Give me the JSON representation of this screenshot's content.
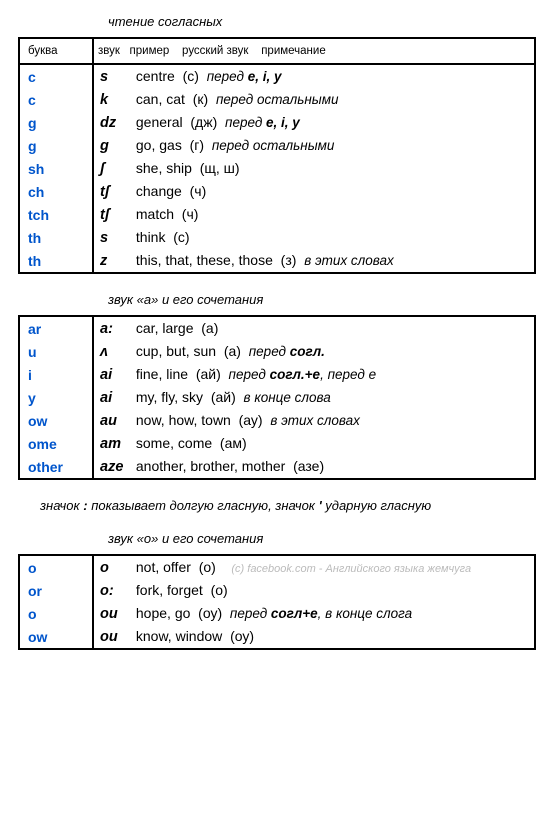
{
  "section1_title": "чтение согласных",
  "headers": {
    "letter": "буква",
    "sound": "звук",
    "example": "пример",
    "russian": "русский звук",
    "note": "примечание"
  },
  "t1": [
    {
      "l": "c",
      "s": "s",
      "ex": "centre",
      "ru": "(с)",
      "note_pre": "перед ",
      "note_b": "e, i, y",
      "note_post": ""
    },
    {
      "l": "c",
      "s": "k",
      "ex": "can, cat",
      "ru": "(к)",
      "note_pre": "перед остальными",
      "note_b": "",
      "note_post": ""
    },
    {
      "l": "g",
      "s": "dz",
      "ex": "general",
      "ru": "(дж)",
      "note_pre": "перед ",
      "note_b": "e, i, y",
      "note_post": ""
    },
    {
      "l": "g",
      "s": "g",
      "ex": "go, gas",
      "ru": "(г)",
      "note_pre": "перед остальными",
      "note_b": "",
      "note_post": ""
    },
    {
      "l": "sh",
      "s": "ʃ",
      "ex": "she, ship",
      "ru": "(щ, ш)",
      "note_pre": "",
      "note_b": "",
      "note_post": ""
    },
    {
      "l": "ch",
      "s": "tʃ",
      "ex": "change",
      "ru": "(ч)",
      "note_pre": "",
      "note_b": "",
      "note_post": ""
    },
    {
      "l": "tch",
      "s": "tʃ",
      "ex": "match",
      "ru": "(ч)",
      "note_pre": "",
      "note_b": "",
      "note_post": ""
    },
    {
      "l": "th",
      "s": "s",
      "ex": "think",
      "ru": "(с)",
      "note_pre": "",
      "note_b": "",
      "note_post": ""
    },
    {
      "l": "th",
      "s": "z",
      "ex": "this, that, these, those",
      "ru": "(з)",
      "note_pre": "в этих словах",
      "note_b": "",
      "note_post": ""
    }
  ],
  "section2_title": "звук «а» и его сочетания",
  "t2": [
    {
      "l": "ar",
      "s": "a:",
      "ex": "car, large",
      "ru": "(а)",
      "note_pre": "",
      "note_b": "",
      "note_post": ""
    },
    {
      "l": "u",
      "s": "ʌ",
      "ex": "cup, but, sun",
      "ru": "(а)",
      "note_pre": "перед ",
      "note_b": "согл.",
      "note_post": ""
    },
    {
      "l": "i",
      "s": "ai",
      "ex": "fine, line",
      "ru": "(ай)",
      "note_pre": "перед ",
      "note_b": "согл.+е",
      "note_post": ", перед е"
    },
    {
      "l": "y",
      "s": "ai",
      "ex": "my, fly, sky",
      "ru": "(ай)",
      "note_pre": "в конце слова",
      "note_b": "",
      "note_post": ""
    },
    {
      "l": "ow",
      "s": "au",
      "ex": "now, how, town",
      "ru": "(ау)",
      "note_pre": "в этих словах",
      "note_b": "",
      "note_post": ""
    },
    {
      "l": "ome",
      "s": "am",
      "ex": "some, come",
      "ru": "(ам)",
      "note_pre": "",
      "note_b": "",
      "note_post": ""
    },
    {
      "l": "other",
      "s": "aze",
      "ex": "another, brother, mother",
      "ru": "(азе)",
      "note_pre": "",
      "note_b": "",
      "note_post": ""
    }
  ],
  "middle_note_1": "значок ",
  "middle_note_b1": ":",
  "middle_note_2": " показывает долгую гласную,  значок ",
  "middle_note_b2": "'",
  "middle_note_3": " ударную гласную",
  "section3_title": "звук «о» и его сочетания",
  "watermark": "(c) facebook.com - Английского языка жемчуга",
  "t3": [
    {
      "l": "o",
      "s": "o",
      "ex": "not, offer",
      "ru": "(о)",
      "note_pre": "",
      "note_b": "",
      "note_post": ""
    },
    {
      "l": "or",
      "s": "o:",
      "ex": "fork, forget",
      "ru": "(о)",
      "note_pre": "",
      "note_b": "",
      "note_post": ""
    },
    {
      "l": "o",
      "s": "ou",
      "ex": "hope, go",
      "ru": "(оу)",
      "note_pre": "перед ",
      "note_b": "согл+е",
      "note_post": ", в конце слога"
    },
    {
      "l": "ow",
      "s": "ou",
      "ex": "know, window",
      "ru": "(оу)",
      "note_pre": "",
      "note_b": "",
      "note_post": ""
    }
  ]
}
